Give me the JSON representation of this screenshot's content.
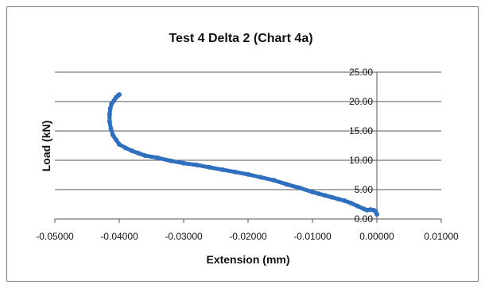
{
  "chart_data": {
    "type": "scatter",
    "title": "Test 4 Delta 2 (Chart 4a)",
    "xlabel": "Extension (mm)",
    "ylabel": "Load (kN)",
    "xlim": [
      -0.05,
      0.01
    ],
    "ylim": [
      0,
      25
    ],
    "x_ticks": [
      "-0.05000",
      "-0.04000",
      "-0.03000",
      "-0.02000",
      "-0.01000",
      "0.00000",
      "0.01000"
    ],
    "y_ticks": [
      "0.00",
      "5.00",
      "10.00",
      "15.00",
      "20.00",
      "25.00"
    ],
    "grid": "horizontal",
    "legend": "none",
    "series_color": "#2e6fc0",
    "series": [
      {
        "x": [
          0.0,
          -0.0002,
          -0.0005,
          -0.001,
          -0.0015,
          -0.002,
          -0.003,
          -0.004,
          -0.005,
          -0.006,
          -0.007,
          -0.008,
          -0.009,
          -0.01,
          -0.012,
          -0.014,
          -0.016,
          -0.018,
          -0.02,
          -0.022,
          -0.024,
          -0.026,
          -0.028,
          -0.03,
          -0.032,
          -0.034,
          -0.036,
          -0.037,
          -0.038,
          -0.039,
          -0.04,
          -0.0405,
          -0.041,
          -0.0413,
          -0.0415,
          -0.0415,
          -0.0414,
          -0.0412,
          -0.0408,
          -0.0405,
          -0.0402,
          -0.04
        ],
        "y": [
          0.8,
          1.3,
          1.5,
          1.6,
          1.5,
          1.7,
          2.2,
          2.7,
          3.1,
          3.4,
          3.7,
          4.0,
          4.3,
          4.6,
          5.3,
          5.9,
          6.6,
          7.1,
          7.6,
          8.0,
          8.4,
          8.8,
          9.2,
          9.5,
          9.9,
          10.4,
          10.8,
          11.2,
          11.6,
          12.1,
          12.7,
          13.5,
          14.3,
          15.4,
          16.6,
          17.8,
          18.8,
          19.6,
          20.2,
          20.7,
          21.0,
          21.2
        ]
      }
    ]
  }
}
